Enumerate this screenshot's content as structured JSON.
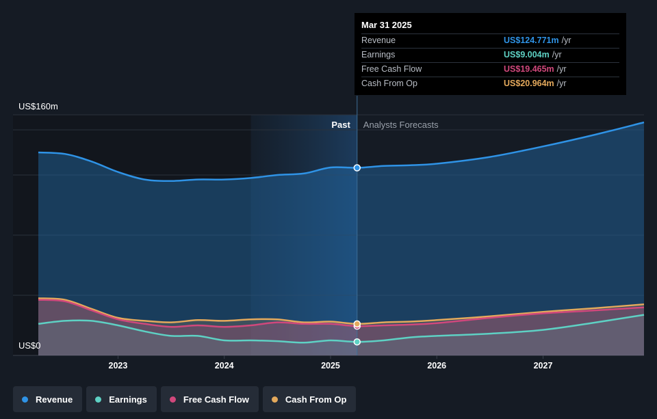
{
  "chart_data": {
    "type": "area",
    "y_top_label": "US$160m",
    "y_bottom_label": "US$0",
    "ylim": [
      0,
      160
    ],
    "xlim": [
      2022.25,
      2027.95
    ],
    "x_ticks": [
      {
        "value": 2023,
        "label": "2023"
      },
      {
        "value": 2024,
        "label": "2024"
      },
      {
        "value": 2025,
        "label": "2025"
      },
      {
        "value": 2026,
        "label": "2026"
      },
      {
        "value": 2027,
        "label": "2027"
      }
    ],
    "divider_x": 2025.25,
    "highlight_start_x": 2024.25,
    "past_label": "Past",
    "forecast_label": "Analysts Forecasts",
    "grid": true,
    "legend_position": "bottom-left",
    "series": [
      {
        "name": "Revenue",
        "color": "#2f93e6",
        "points": [
          [
            2022.25,
            135
          ],
          [
            2022.5,
            134
          ],
          [
            2022.75,
            129
          ],
          [
            2023,
            122
          ],
          [
            2023.25,
            117
          ],
          [
            2023.5,
            116
          ],
          [
            2023.75,
            117
          ],
          [
            2024,
            117
          ],
          [
            2024.25,
            118
          ],
          [
            2024.5,
            120
          ],
          [
            2024.75,
            121
          ],
          [
            2025,
            125
          ],
          [
            2025.25,
            124.771
          ],
          [
            2025.5,
            126
          ],
          [
            2025.75,
            126.5
          ],
          [
            2026,
            127.5
          ],
          [
            2026.5,
            132
          ],
          [
            2027,
            139
          ],
          [
            2027.5,
            147
          ],
          [
            2027.95,
            155
          ]
        ]
      },
      {
        "name": "Earnings",
        "color": "#5ed1c4",
        "points": [
          [
            2022.25,
            21
          ],
          [
            2022.5,
            23
          ],
          [
            2022.75,
            23
          ],
          [
            2023,
            20
          ],
          [
            2023.25,
            16
          ],
          [
            2023.5,
            13
          ],
          [
            2023.75,
            13
          ],
          [
            2024,
            10
          ],
          [
            2024.25,
            10
          ],
          [
            2024.5,
            9.5
          ],
          [
            2024.75,
            8.5
          ],
          [
            2025,
            10
          ],
          [
            2025.25,
            9.004
          ],
          [
            2025.5,
            10
          ],
          [
            2025.75,
            12
          ],
          [
            2026,
            13
          ],
          [
            2026.5,
            14.5
          ],
          [
            2027,
            17
          ],
          [
            2027.5,
            22
          ],
          [
            2027.95,
            27
          ]
        ]
      },
      {
        "name": "Free Cash Flow",
        "color": "#d1487c",
        "points": [
          [
            2022.25,
            37
          ],
          [
            2022.5,
            36
          ],
          [
            2022.75,
            30
          ],
          [
            2023,
            24
          ],
          [
            2023.25,
            21
          ],
          [
            2023.5,
            19
          ],
          [
            2023.75,
            20
          ],
          [
            2024,
            19
          ],
          [
            2024.25,
            20
          ],
          [
            2024.5,
            22
          ],
          [
            2024.75,
            21
          ],
          [
            2025,
            21
          ],
          [
            2025.25,
            19.465
          ],
          [
            2025.5,
            20
          ],
          [
            2025.75,
            20.5
          ],
          [
            2026,
            21.5
          ],
          [
            2026.5,
            25
          ],
          [
            2027,
            28
          ],
          [
            2027.5,
            30
          ],
          [
            2027.95,
            32
          ]
        ]
      },
      {
        "name": "Cash From Op",
        "color": "#e4a95c",
        "points": [
          [
            2022.25,
            38
          ],
          [
            2022.5,
            37
          ],
          [
            2022.75,
            31
          ],
          [
            2023,
            25
          ],
          [
            2023.25,
            23
          ],
          [
            2023.5,
            22
          ],
          [
            2023.75,
            23.5
          ],
          [
            2024,
            23
          ],
          [
            2024.25,
            24
          ],
          [
            2024.5,
            24
          ],
          [
            2024.75,
            22
          ],
          [
            2025,
            22.5
          ],
          [
            2025.25,
            20.964
          ],
          [
            2025.5,
            22
          ],
          [
            2025.75,
            22.5
          ],
          [
            2026,
            23.5
          ],
          [
            2026.5,
            26
          ],
          [
            2027,
            29
          ],
          [
            2027.5,
            31.5
          ],
          [
            2027.95,
            34
          ]
        ]
      }
    ]
  },
  "tooltip": {
    "date": "Mar 31 2025",
    "rows": [
      {
        "label": "Revenue",
        "value": "US$124.771m",
        "unit": "/yr",
        "color": "#2f93e6"
      },
      {
        "label": "Earnings",
        "value": "US$9.004m",
        "unit": "/yr",
        "color": "#5ed1c4"
      },
      {
        "label": "Free Cash Flow",
        "value": "US$19.465m",
        "unit": "/yr",
        "color": "#d1487c"
      },
      {
        "label": "Cash From Op",
        "value": "US$20.964m",
        "unit": "/yr",
        "color": "#e4a95c"
      }
    ]
  },
  "legend": [
    {
      "label": "Revenue",
      "color": "#2f93e6"
    },
    {
      "label": "Earnings",
      "color": "#5ed1c4"
    },
    {
      "label": "Free Cash Flow",
      "color": "#d1487c"
    },
    {
      "label": "Cash From Op",
      "color": "#e4a95c"
    }
  ]
}
